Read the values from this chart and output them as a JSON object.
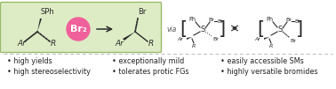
{
  "background_color": "#ffffff",
  "green_box_color": "#ddecc5",
  "green_box_border": "#9aba6a",
  "pink_circle_color": "#f0609a",
  "pink_circle_text": "Br₂",
  "bullet_cols": [
    [
      "high yields",
      "high stereoselectivity"
    ],
    [
      "exceptionally mild",
      "tolerates protic FGs"
    ],
    [
      "easily accessible SMs",
      "highly versatile bromides"
    ]
  ],
  "divider_color": "#bbbbbb",
  "text_color": "#222222",
  "via_text": "via",
  "font_size_bullets": 5.8,
  "font_size_chem": 6.5,
  "font_size_pink": 8.0
}
